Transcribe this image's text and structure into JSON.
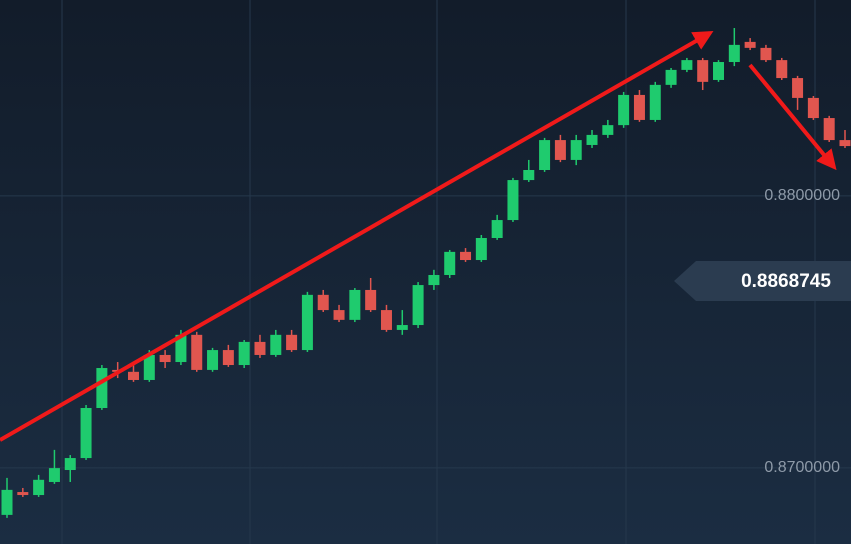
{
  "chart_data": {
    "type": "candlestick",
    "up_color": "#1fcb6e",
    "down_color": "#e1564f",
    "open": [
      0.86827,
      0.86911,
      0.869,
      0.86948,
      0.86992,
      0.87036,
      0.8722,
      0.8736,
      0.87353,
      0.87323,
      0.87415,
      0.87389,
      0.87489,
      0.8736,
      0.87433,
      0.87378,
      0.87463,
      0.87415,
      0.87489,
      0.87433,
      0.87636,
      0.8758,
      0.87544,
      0.87654,
      0.8758,
      0.87507,
      0.87525,
      0.87672,
      0.87709,
      0.87794,
      0.87764,
      0.87845,
      0.87911,
      0.88058,
      0.88095,
      0.88205,
      0.88132,
      0.88187,
      0.88224,
      0.8826,
      0.88371,
      0.88279,
      0.88408,
      0.88463,
      0.88499,
      0.88426,
      0.88492,
      0.88566,
      0.88544,
      0.88499,
      0.88433,
      0.8836,
      0.88286,
      0.88205
    ],
    "high": [
      0.86963,
      0.86926,
      0.86974,
      0.87066,
      0.87047,
      0.87231,
      0.87378,
      0.87389,
      0.87378,
      0.87433,
      0.87433,
      0.87507,
      0.875,
      0.87441,
      0.87452,
      0.8747,
      0.87489,
      0.87507,
      0.87507,
      0.87647,
      0.87654,
      0.87599,
      0.87661,
      0.87698,
      0.87599,
      0.8758,
      0.87683,
      0.87728,
      0.87801,
      0.87808,
      0.87856,
      0.8793,
      0.88066,
      0.88132,
      0.88213,
      0.88224,
      0.88224,
      0.88242,
      0.88279,
      0.88382,
      0.88389,
      0.88419,
      0.8847,
      0.88507,
      0.88507,
      0.88499,
      0.88617,
      0.8858,
      0.88555,
      0.88507,
      0.88441,
      0.88367,
      0.88294,
      0.88242
    ],
    "low": [
      0.86816,
      0.86893,
      0.86893,
      0.86941,
      0.86948,
      0.87029,
      0.87213,
      0.8733,
      0.87316,
      0.87316,
      0.87367,
      0.87378,
      0.87353,
      0.87353,
      0.87371,
      0.87367,
      0.87404,
      0.87408,
      0.87426,
      0.87426,
      0.87573,
      0.87536,
      0.87536,
      0.87573,
      0.875,
      0.87489,
      0.87514,
      0.87654,
      0.87698,
      0.87757,
      0.87757,
      0.87838,
      0.87904,
      0.88051,
      0.88088,
      0.88124,
      0.88113,
      0.88176,
      0.88213,
      0.8825,
      0.88272,
      0.88272,
      0.88397,
      0.88455,
      0.88389,
      0.88419,
      0.88477,
      0.88536,
      0.88492,
      0.88426,
      0.88316,
      0.88279,
      0.88198,
      0.88176
    ],
    "close": [
      0.86919,
      0.869,
      0.86956,
      0.86999,
      0.87036,
      0.8722,
      0.87367,
      0.87353,
      0.87323,
      0.87415,
      0.87389,
      0.87489,
      0.8736,
      0.87433,
      0.87378,
      0.87463,
      0.87415,
      0.87489,
      0.87433,
      0.87636,
      0.8758,
      0.87544,
      0.87654,
      0.8758,
      0.87507,
      0.87525,
      0.87672,
      0.87709,
      0.87794,
      0.87764,
      0.87845,
      0.87911,
      0.88058,
      0.88095,
      0.88205,
      0.88132,
      0.88205,
      0.88224,
      0.8826,
      0.88371,
      0.88279,
      0.88408,
      0.88463,
      0.88499,
      0.88419,
      0.88492,
      0.88555,
      0.88544,
      0.88499,
      0.88433,
      0.8836,
      0.88286,
      0.88205,
      0.88183
    ],
    "ylim": [
      0.8672,
      0.8872
    ],
    "yticks": [
      {
        "value": 0.87,
        "label": "0.8700000"
      },
      {
        "value": 0.88,
        "label": "0.8800000"
      }
    ],
    "grid": true,
    "current_price": 0.8868745
  }
}
